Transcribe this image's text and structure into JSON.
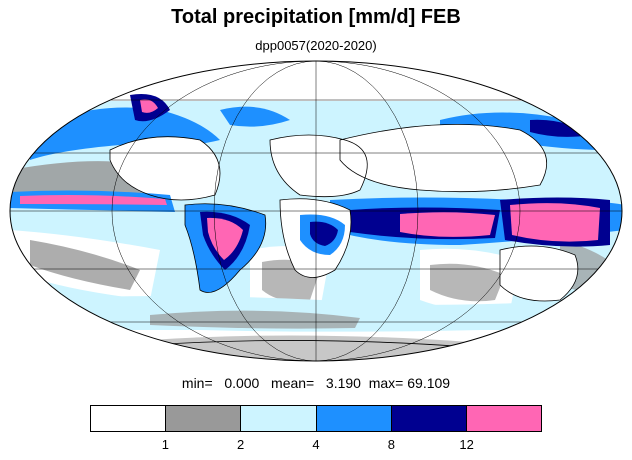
{
  "title": "Total precipitation [mm/d] FEB",
  "subtitle": "dpp0057(2020-2020)",
  "stats": {
    "min_label": "min=",
    "min_value": "0.000",
    "mean_label": "mean=",
    "mean_value": "3.190",
    "max_label": "max=",
    "max_value": "69.109"
  },
  "legend": {
    "colors": [
      "#ffffff",
      "#999999",
      "#cdf4ff",
      "#1e90ff",
      "#000090",
      "#ff66b4"
    ],
    "tick_labels": [
      "1",
      "2",
      "4",
      "8",
      "12"
    ]
  },
  "map": {
    "projection": "Mollweide",
    "land_fill": "#ffffff",
    "coastline_color": "#000000",
    "graticule": true
  }
}
